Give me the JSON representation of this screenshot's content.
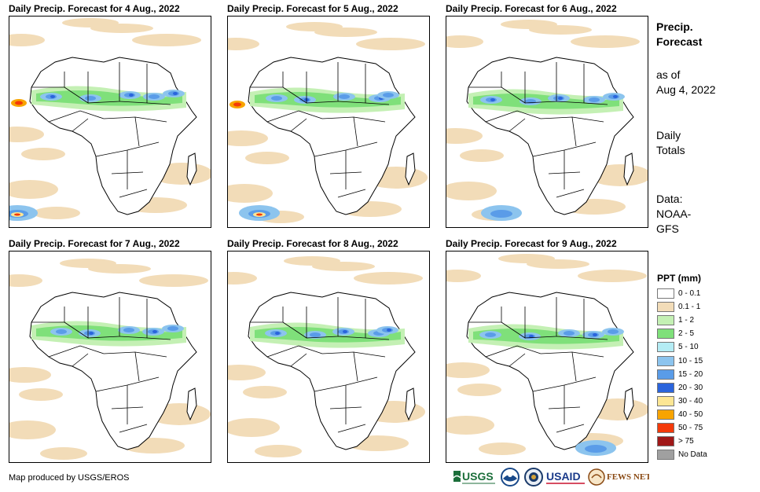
{
  "panels": [
    {
      "title": "Daily Precip. Forecast for 4 Aug., 2022"
    },
    {
      "title": "Daily Precip. Forecast for 5 Aug., 2022"
    },
    {
      "title": "Daily Precip. Forecast for 6 Aug., 2022"
    },
    {
      "title": "Daily Precip. Forecast for 7 Aug., 2022"
    },
    {
      "title": "Daily Precip. Forecast for 8 Aug., 2022"
    },
    {
      "title": "Daily Precip. Forecast for 9 Aug., 2022"
    }
  ],
  "side": {
    "title_line1": "Precip.",
    "title_line2": "Forecast",
    "asof_line1": "as of",
    "asof_line2": "Aug 4, 2022",
    "totals_line1": "Daily",
    "totals_line2": "Totals",
    "data_line1": "Data:",
    "data_line2": "NOAA-",
    "data_line3": "GFS"
  },
  "legend": {
    "title": "PPT (mm)",
    "items": [
      {
        "label": "0 - 0.1",
        "color": "#ffffff"
      },
      {
        "label": "0.1 - 1",
        "color": "#f2dcb8"
      },
      {
        "label": "1 - 2",
        "color": "#c4f0b4"
      },
      {
        "label": "2 - 5",
        "color": "#7fe07a"
      },
      {
        "label": "5 - 10",
        "color": "#b4ecf4"
      },
      {
        "label": "10 - 15",
        "color": "#8cc4ee"
      },
      {
        "label": "15 - 20",
        "color": "#5a9ce8"
      },
      {
        "label": "20 - 30",
        "color": "#2a64dc"
      },
      {
        "label": "30 - 40",
        "color": "#fce694"
      },
      {
        "label": "40 - 50",
        "color": "#f8a400"
      },
      {
        "label": "50 - 75",
        "color": "#f43a0a"
      },
      {
        "label": "> 75",
        "color": "#a01818"
      },
      {
        "label": "No Data",
        "color": "#a0a0a0"
      }
    ]
  },
  "credit": "Map produced by USGS/EROS",
  "logos": {
    "usgs": "USGS",
    "usaid": "USAID",
    "fewsnet": "FEWS NET"
  }
}
